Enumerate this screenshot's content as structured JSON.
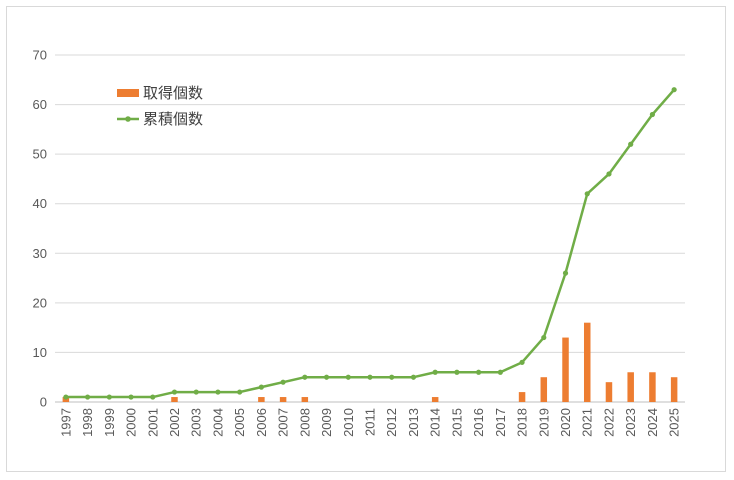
{
  "chart_data": {
    "type": "bar",
    "title": "",
    "xlabel": "",
    "ylabel": "",
    "ylim": [
      0,
      70
    ],
    "yticks": [
      0,
      10,
      20,
      30,
      40,
      50,
      60,
      70
    ],
    "grid": true,
    "legend_position": "top-left",
    "categories": [
      "1997",
      "1998",
      "1999",
      "2000",
      "2001",
      "2002",
      "2003",
      "2004",
      "2005",
      "2006",
      "2007",
      "2008",
      "2009",
      "2010",
      "2011",
      "2012",
      "2013",
      "2014",
      "2015",
      "2016",
      "2017",
      "2018",
      "2019",
      "2020",
      "2021",
      "2022",
      "2023",
      "2024",
      "2025"
    ],
    "series": [
      {
        "name": "取得個数",
        "type": "bar",
        "color": "#ed7d31",
        "values": [
          1,
          0,
          0,
          0,
          0,
          1,
          0,
          0,
          0,
          1,
          1,
          1,
          0,
          0,
          0,
          0,
          0,
          1,
          0,
          0,
          0,
          2,
          5,
          13,
          16,
          4,
          6,
          6,
          5
        ]
      },
      {
        "name": "累積個数",
        "type": "line",
        "color": "#70ad47",
        "values": [
          1,
          1,
          1,
          1,
          1,
          2,
          2,
          2,
          2,
          3,
          4,
          5,
          5,
          5,
          5,
          5,
          5,
          6,
          6,
          6,
          6,
          8,
          13,
          26,
          42,
          46,
          52,
          58,
          63
        ]
      }
    ]
  }
}
